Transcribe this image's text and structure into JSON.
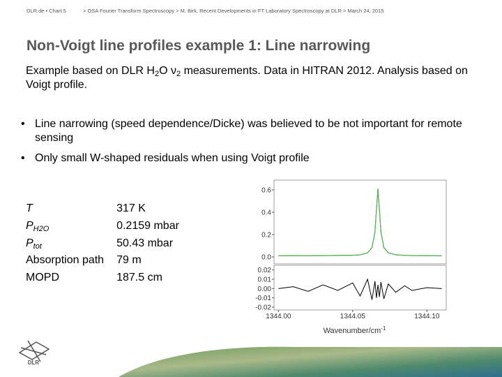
{
  "header": {
    "left": "DLR.de • Chart 5",
    "right": "> OSA Fourier Transform Spectroscopy > M. Birk, Recent Developments in FT Laboratory Spectroscopy at DLR > March 24, 2015"
  },
  "title": "Non-Voigt line profiles example 1: Line narrowing",
  "intro": [
    "Example based on DLR H",
    "2",
    "O ν",
    "2",
    " measurements. Data in HITRAN 2012. Analysis based on Voigt profile."
  ],
  "bullets": [
    "Line narrowing (speed dependence/Dicke) was believed to be not important for remote sensing",
    "Only small W-shaped residuals when using Voigt profile"
  ],
  "params": [
    {
      "label": "T",
      "value": "317 K"
    },
    {
      "label": "P",
      "sub": "H2O",
      "value": "0.2159 mbar"
    },
    {
      "label": "P",
      "sub": "tot",
      "value": "50.43 mbar"
    },
    {
      "label": "Absorption path",
      "value": "79 m"
    },
    {
      "label": "MOPD",
      "value": "187.5 cm"
    }
  ],
  "logo_text": "DLR",
  "chart_data": [
    {
      "type": "line",
      "x": [
        1344.0,
        1344.01,
        1344.02,
        1344.03,
        1344.04,
        1344.05,
        1344.055,
        1344.06,
        1344.063,
        1344.065,
        1344.066,
        1344.067,
        1344.068,
        1344.069,
        1344.071,
        1344.074,
        1344.079,
        1344.085,
        1344.09,
        1344.1,
        1344.11
      ],
      "series": [
        {
          "color": "#000000",
          "values": [
            0.01,
            0.011,
            0.01,
            0.012,
            0.013,
            0.015,
            0.019,
            0.036,
            0.084,
            0.226,
            0.425,
            0.61,
            0.425,
            0.226,
            0.084,
            0.036,
            0.019,
            0.014,
            0.012,
            0.011,
            0.01
          ]
        },
        {
          "color": "#5cb85c",
          "values": [
            0.01,
            0.011,
            0.01,
            0.012,
            0.013,
            0.015,
            0.019,
            0.036,
            0.082,
            0.222,
            0.42,
            0.605,
            0.42,
            0.222,
            0.082,
            0.036,
            0.019,
            0.014,
            0.012,
            0.011,
            0.01
          ]
        }
      ],
      "xlim": [
        1343.997,
        1344.113
      ],
      "ylim": [
        -0.0625,
        0.6875
      ],
      "yticks": [
        {
          "value": 0,
          "label": "0.0"
        },
        0.2,
        0.4,
        0.6
      ]
    },
    {
      "type": "line",
      "x": [
        1344.0,
        1344.01,
        1344.02,
        1344.03,
        1344.04,
        1344.05,
        1344.055,
        1344.06,
        1344.063,
        1344.065,
        1344.066,
        1344.067,
        1344.068,
        1344.069,
        1344.071,
        1344.074,
        1344.079,
        1344.085,
        1344.09,
        1344.1,
        1344.11
      ],
      "series": [
        {
          "color": "#000000",
          "values": [
            0.0,
            0.002,
            -0.003,
            0.004,
            -0.002,
            0.006,
            -0.008,
            0.01,
            -0.012,
            0.008,
            -0.01,
            0.004,
            -0.009,
            0.007,
            -0.011,
            0.005,
            -0.004,
            0.003,
            -0.002,
            0.001,
            0.0
          ]
        }
      ],
      "xlim": [
        1343.997,
        1344.113
      ],
      "ylim": [
        -0.023,
        0.025
      ],
      "xticks": [
        {
          "value": 1344.0,
          "label": "1344.00"
        },
        {
          "value": 1344.05,
          "label": "1344.05"
        },
        {
          "value": 1344.1,
          "label": "1344.10"
        }
      ],
      "yticks": [
        -0.02,
        -0.01,
        {
          "value": 0,
          "label": "0.00"
        },
        0.01,
        0.02
      ],
      "xlabel": "Wavenumber/cm",
      "xlabel_superscript": "-1"
    }
  ]
}
